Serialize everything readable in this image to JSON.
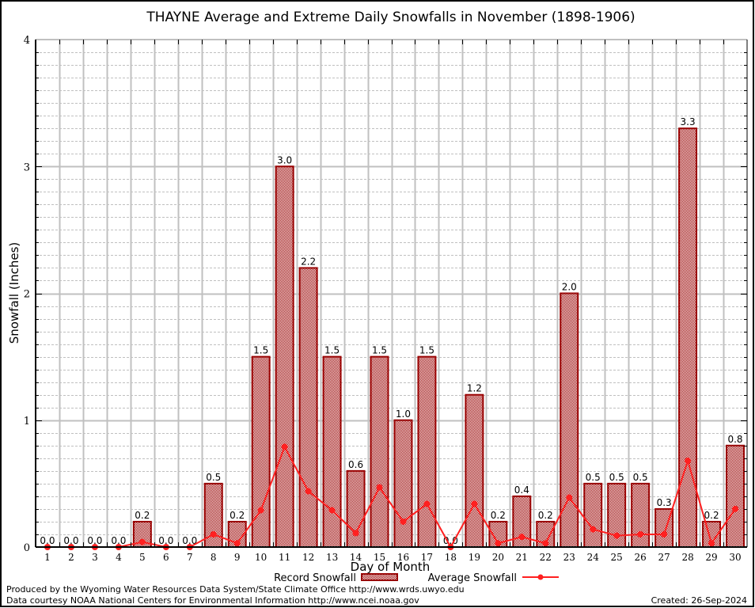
{
  "chart_data": {
    "type": "bar",
    "title": "THAYNE Average and Extreme Daily Snowfalls in November (1898-1906)",
    "xlabel": "Day of Month",
    "ylabel": "Snowfall (Inches)",
    "ylim": [
      0,
      4
    ],
    "yticks": [
      "0",
      "1",
      "2",
      "3",
      "4"
    ],
    "grid": true,
    "legend_position": "bottom-center",
    "categories": [
      "1",
      "2",
      "3",
      "4",
      "5",
      "6",
      "7",
      "8",
      "9",
      "10",
      "11",
      "12",
      "13",
      "14",
      "15",
      "16",
      "17",
      "18",
      "19",
      "20",
      "21",
      "22",
      "23",
      "24",
      "25",
      "26",
      "27",
      "28",
      "29",
      "30"
    ],
    "series": [
      {
        "name": "Record Snowfall",
        "kind": "bar",
        "color": "#990000",
        "values": [
          0.0,
          0.0,
          0.0,
          0.0,
          0.2,
          0.0,
          0.0,
          0.5,
          0.2,
          1.5,
          3.0,
          2.2,
          1.5,
          0.6,
          1.5,
          1.0,
          1.5,
          0.0,
          1.2,
          0.2,
          0.4,
          0.2,
          2.0,
          0.5,
          0.5,
          0.5,
          0.3,
          3.3,
          0.2,
          0.8
        ],
        "labels": [
          "0.0",
          "0.0",
          "0.0",
          "0.0",
          "0.2",
          "0.0",
          "0.0",
          "0.5",
          "0.2",
          "1.5",
          "3.0",
          "2.2",
          "1.5",
          "0.6",
          "1.5",
          "1.0",
          "1.5",
          "0.0",
          "1.2",
          "0.2",
          "0.4",
          "0.2",
          "2.0",
          "0.5",
          "0.5",
          "0.5",
          "0.3",
          "3.3",
          "0.2",
          "0.8"
        ]
      },
      {
        "name": "Average Snowfall",
        "kind": "line",
        "color": "#ff2020",
        "values": [
          0.0,
          0.0,
          0.0,
          0.0,
          0.04,
          0.0,
          0.0,
          0.1,
          0.03,
          0.29,
          0.79,
          0.44,
          0.29,
          0.11,
          0.47,
          0.2,
          0.34,
          0.0,
          0.34,
          0.03,
          0.08,
          0.03,
          0.39,
          0.14,
          0.09,
          0.1,
          0.1,
          0.68,
          0.03,
          0.3
        ]
      }
    ]
  },
  "footer": {
    "line1": "Produced by the Wyoming Water Resources Data System/State Climate Office http://www.wrds.uwyo.edu",
    "line2": "Data courtesy NOAA National Centers for Environmental Information http://www.ncei.noaa.gov",
    "created": "Created:  26-Sep-2024"
  }
}
